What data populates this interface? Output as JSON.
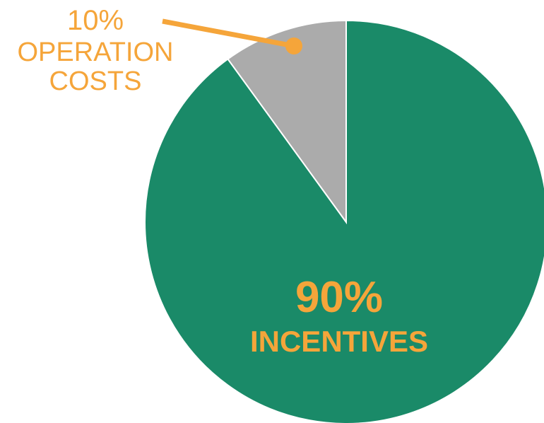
{
  "chart_data": {
    "type": "pie",
    "categories": [
      "INCENTIVES",
      "OPERATION COSTS"
    ],
    "values": [
      90,
      10
    ],
    "value_labels": [
      "90%",
      "10%"
    ],
    "colors": [
      "#1a8a68",
      "#ababab"
    ],
    "label_color": "#f5a53a"
  }
}
